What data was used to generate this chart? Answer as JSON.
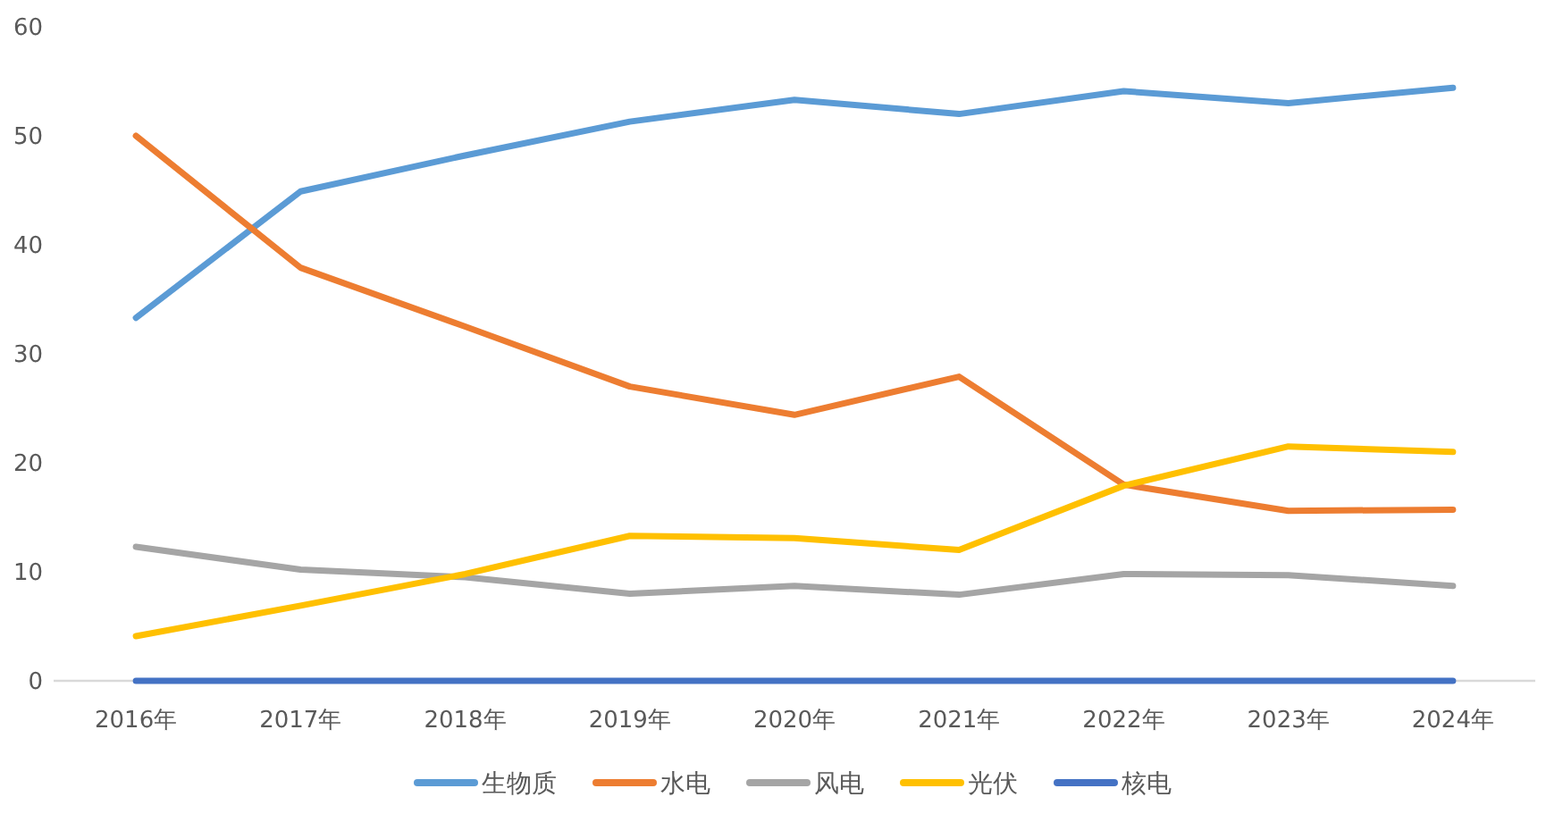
{
  "chart_data": {
    "type": "line",
    "categories": [
      "2016年",
      "2017年",
      "2018年",
      "2019年",
      "2020年",
      "2021年",
      "2022年",
      "2023年",
      "2024年"
    ],
    "series": [
      {
        "name": "生物质",
        "color": "#5b9bd5",
        "values": [
          33.3,
          44.9,
          48.2,
          51.3,
          53.3,
          52.0,
          54.1,
          53.0,
          54.4
        ]
      },
      {
        "name": "水电",
        "color": "#ed7d31",
        "values": [
          50.0,
          37.9,
          32.5,
          27.0,
          24.4,
          27.9,
          18.0,
          15.6,
          15.7
        ]
      },
      {
        "name": "风电",
        "color": "#a5a5a5",
        "values": [
          12.3,
          10.2,
          9.5,
          8.0,
          8.7,
          7.9,
          9.8,
          9.7,
          8.7
        ]
      },
      {
        "name": "光伏",
        "color": "#ffc000",
        "values": [
          4.1,
          6.9,
          9.8,
          13.3,
          13.1,
          12.0,
          17.9,
          21.5,
          21.0
        ]
      },
      {
        "name": "核电",
        "color": "#4472c4",
        "values": [
          0,
          0,
          0,
          0,
          0,
          0,
          0,
          0,
          0
        ]
      }
    ],
    "ylim": [
      0,
      60
    ],
    "yticks": [
      0,
      10,
      20,
      30,
      40,
      50,
      60
    ],
    "grid": false,
    "legend": "bottom"
  }
}
